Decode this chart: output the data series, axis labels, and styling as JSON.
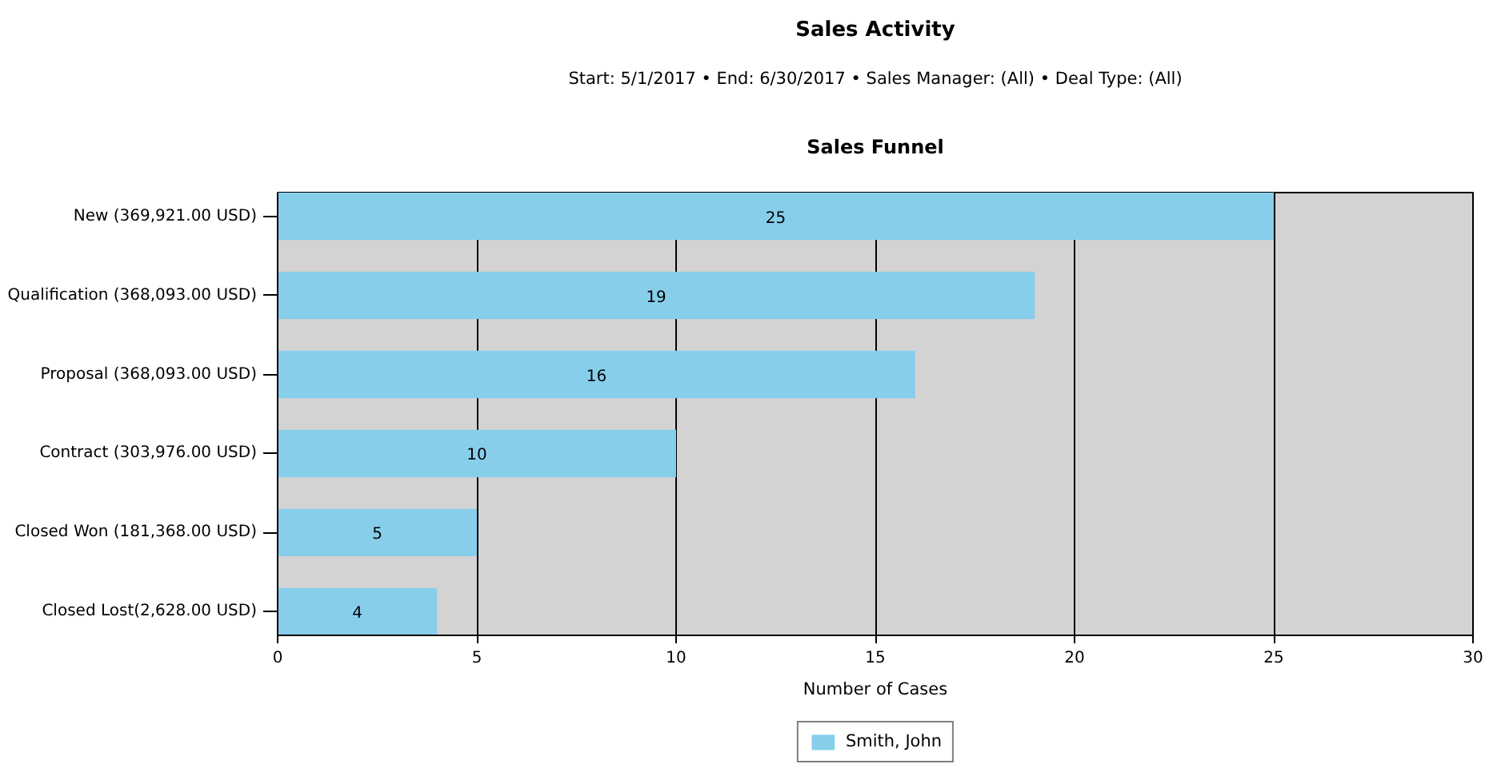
{
  "chart_data": {
    "type": "bar",
    "title": "Sales Activity",
    "subtitle": "Start: 5/1/2017 • End: 6/30/2017 • Sales Manager: (All) • Deal Type: (All)",
    "annotations": [
      "Sales Funnel"
    ],
    "orientation": "horizontal",
    "categories": [
      "New (369,921.00 USD)",
      "Qualification (368,093.00 USD)",
      "Proposal (368,093.00 USD)",
      "Contract (303,976.00 USD)",
      "Closed Won (181,368.00 USD)",
      "Closed Lost(2,628.00 USD)"
    ],
    "series": [
      {
        "name": "Smith, John",
        "color": "#87ceeb",
        "values": [
          25,
          19,
          16,
          10,
          5,
          4
        ]
      }
    ],
    "xlim": [
      0,
      30
    ],
    "xticks": [
      0,
      5,
      10,
      15,
      20,
      25,
      30
    ],
    "xlabel": "Number of Cases",
    "grid": "x",
    "legend": "bottom",
    "data_labels": true
  }
}
